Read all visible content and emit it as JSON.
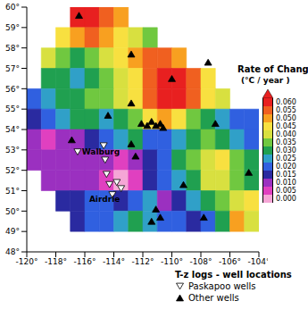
{
  "chart_data": {
    "type": "heatmap",
    "xlim": [
      -120,
      -104
    ],
    "xticks": [
      {
        "value": -120,
        "label": "-120°"
      },
      {
        "value": -118,
        "label": "-118°"
      },
      {
        "value": -116,
        "label": "-116°"
      },
      {
        "value": -114,
        "label": "-114°"
      },
      {
        "value": -112,
        "label": "-112°"
      },
      {
        "value": -110,
        "label": "-110°"
      },
      {
        "value": -108,
        "label": "-108°"
      },
      {
        "value": -106,
        "label": "-106°"
      },
      {
        "value": -104,
        "label": "-104°"
      }
    ],
    "ylim": [
      48,
      60
    ],
    "yticks": [
      {
        "value": 48,
        "label": "48°"
      },
      {
        "value": 49,
        "label": "49°"
      },
      {
        "value": 50,
        "label": "50°"
      },
      {
        "value": 51,
        "label": "51°"
      },
      {
        "value": 52,
        "label": "52°"
      },
      {
        "value": 53,
        "label": "53°"
      },
      {
        "value": 54,
        "label": "54°"
      },
      {
        "value": 55,
        "label": "55°"
      },
      {
        "value": 56,
        "label": "56°"
      },
      {
        "value": 57,
        "label": "57°"
      },
      {
        "value": 58,
        "label": "58°"
      },
      {
        "value": 59,
        "label": "59°"
      },
      {
        "value": 60,
        "label": "60°"
      }
    ],
    "cells": {
      "lon_edges": [
        -120,
        -119,
        -118,
        -117,
        -116,
        -115,
        -114,
        -113,
        -112,
        -111,
        -110,
        -109,
        -108,
        -107,
        -106,
        -105,
        -104
      ],
      "lat_edges": [
        60,
        59,
        58,
        57,
        56,
        55,
        54,
        53,
        52,
        51,
        50,
        49
      ],
      "values": [
        [
          null,
          null,
          null,
          0.06,
          0.06,
          0.055,
          0.05,
          null,
          null,
          null,
          null,
          null,
          null,
          null,
          null,
          null
        ],
        [
          null,
          null,
          0.045,
          0.05,
          0.055,
          0.05,
          0.045,
          0.04,
          0.035,
          null,
          null,
          null,
          null,
          null,
          null,
          null
        ],
        [
          null,
          0.04,
          0.035,
          0.03,
          0.035,
          0.04,
          0.045,
          0.05,
          0.055,
          0.055,
          0.05,
          null,
          null,
          null,
          null,
          null
        ],
        [
          null,
          0.03,
          0.03,
          0.025,
          0.03,
          0.035,
          0.04,
          0.045,
          0.055,
          0.06,
          0.06,
          0.055,
          0.045,
          null,
          null,
          null
        ],
        [
          0.02,
          0.025,
          0.03,
          0.03,
          0.035,
          0.035,
          0.04,
          0.045,
          0.055,
          0.06,
          0.06,
          0.055,
          0.045,
          0.04,
          null,
          null
        ],
        [
          0.015,
          0.02,
          0.025,
          0.03,
          0.03,
          0.025,
          0.03,
          0.035,
          0.045,
          0.05,
          0.045,
          0.035,
          0.03,
          0.025,
          0.02,
          0.02
        ],
        [
          0.01,
          0.005,
          0.01,
          0.01,
          0.015,
          0.02,
          0.025,
          0.03,
          0.02,
          0.02,
          0.025,
          0.03,
          0.035,
          0.03,
          0.025,
          0.02
        ],
        [
          0.01,
          0.01,
          0.01,
          0.01,
          0.01,
          0.01,
          0.005,
          0.01,
          0.015,
          0.02,
          0.03,
          0.035,
          0.04,
          0.045,
          0.035,
          0.03
        ],
        [
          null,
          0.01,
          0.01,
          0.01,
          0.01,
          0.005,
          0,
          0.005,
          0.015,
          0.02,
          0.025,
          0.03,
          0.04,
          0.04,
          0.035,
          0.03
        ],
        [
          null,
          null,
          0.015,
          0.015,
          0.02,
          0.02,
          0.015,
          0.02,
          0.025,
          0.01,
          0.015,
          0.025,
          0.03,
          0.035,
          0.04,
          0.045
        ],
        [
          null,
          null,
          null,
          0.015,
          0.02,
          0.02,
          0.025,
          0.03,
          0.025,
          0.02,
          0.02,
          0.015,
          0.02,
          0.03,
          0.05,
          0.04
        ]
      ]
    },
    "colorbar": {
      "title": "Rate of Change",
      "label": "(°C / year )",
      "range": [
        0,
        0.06
      ],
      "ticks": [
        {
          "value": 0,
          "label": "0.000"
        },
        {
          "value": 0.005,
          "label": "0.005"
        },
        {
          "value": 0.01,
          "label": "0.010"
        },
        {
          "value": 0.015,
          "label": "0.015"
        },
        {
          "value": 0.02,
          "label": "0.020"
        },
        {
          "value": 0.025,
          "label": "0.025"
        },
        {
          "value": 0.03,
          "label": "0.030"
        },
        {
          "value": 0.035,
          "label": "0.035"
        },
        {
          "value": 0.04,
          "label": "0.040"
        },
        {
          "value": 0.045,
          "label": "0.045"
        },
        {
          "value": 0.05,
          "label": "0.050"
        },
        {
          "value": 0.055,
          "label": "0.055"
        },
        {
          "value": 0.06,
          "label": "0.060"
        }
      ],
      "colors": [
        "#f5a6d6",
        "#e040c0",
        "#9b30c0",
        "#2a2aa0",
        "#3060e0",
        "#30a0c8",
        "#20a050",
        "#70c840",
        "#d8e040",
        "#f8e040",
        "#f8a020",
        "#f06020",
        "#e82020"
      ]
    },
    "legend": "bottom",
    "legend_title": "T-z logs - well locations",
    "series": [
      {
        "name": "Paskapoo wells",
        "type": "scatter",
        "marker": "triangle-down",
        "color": "#ffffff",
        "x": [
          -116.5,
          -114.7,
          -114.6,
          -114.5,
          -114.3,
          -113.8,
          -113.5,
          -114.1
        ],
        "y": [
          52.9,
          53.2,
          52.5,
          51.8,
          51.3,
          51.4,
          51.1,
          50.8
        ]
      },
      {
        "name": "Other wells",
        "type": "scatter",
        "marker": "triangle",
        "color": "#000000",
        "x": [
          -116.4,
          -112.8,
          -107.5,
          -112.1,
          -111.7,
          -111.4,
          -111.1,
          -110.8,
          -110.6,
          -114.4,
          -116.9,
          -112.8,
          -112.5,
          -111.1,
          -111.4,
          -110.8,
          -109.2,
          -107.8,
          -104.7,
          -112.8,
          -110,
          -107
        ],
        "y": [
          59.6,
          57.7,
          57.3,
          54.3,
          54.2,
          54.4,
          54.2,
          54.3,
          54.1,
          54.7,
          53.5,
          53.3,
          52.7,
          50.1,
          49.5,
          49.7,
          51.3,
          49.7,
          51.9,
          55.3,
          56.5,
          54.3
        ]
      }
    ],
    "annotations": [
      {
        "text": "Walburg",
        "x": -116.2,
        "y": 52.9
      },
      {
        "text": "Airdrie",
        "x": -115.7,
        "y": 50.6
      }
    ]
  }
}
